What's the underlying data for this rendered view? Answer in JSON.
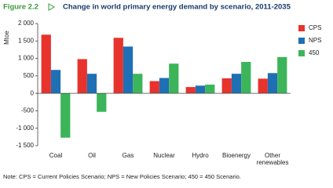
{
  "chart_data": {
    "type": "bar",
    "figure_label": "Figure 2.2",
    "title": "Change in world primary energy demand by scenario, 2011-2035",
    "y_label": "Mtoe",
    "categories": [
      "Coal",
      "Oil",
      "Gas",
      "Nuclear",
      "Hydro",
      "Bioenergy",
      "Other renewables"
    ],
    "series": [
      {
        "name": "CPS",
        "color": "#e8322c",
        "values": [
          1680,
          980,
          1590,
          350,
          180,
          430,
          420
        ]
      },
      {
        "name": "NPS",
        "color": "#1f6fb5",
        "values": [
          670,
          560,
          1340,
          440,
          220,
          560,
          580
        ]
      },
      {
        "name": "450",
        "color": "#3cb55a",
        "values": [
          -1270,
          -530,
          560,
          850,
          250,
          900,
          1040
        ]
      }
    ],
    "ylim": [
      -1500,
      2000
    ],
    "yticks": [
      {
        "value": -1500,
        "label": "-1 500"
      },
      {
        "value": -1000,
        "label": "-1 000"
      },
      -500,
      0,
      500,
      {
        "value": 1000,
        "label": "1 000"
      },
      {
        "value": 1500,
        "label": "1 500"
      },
      {
        "value": 2000,
        "label": "2 000"
      }
    ],
    "legend": "right",
    "note": "Note: CPS = Current Policies Scenario; NPS = New Policies Scenario; 450 = 450 Scenario."
  }
}
